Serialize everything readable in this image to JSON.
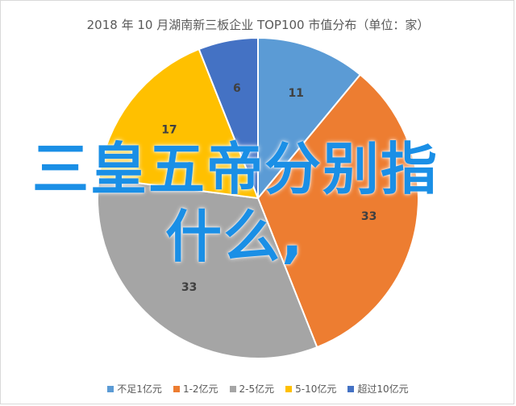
{
  "chart_data": {
    "type": "pie",
    "title": "2018 年 10 月湖南新三板企业 TOP100 市值分布（单位：家）",
    "categories": [
      "不足1亿元",
      "1-2亿元",
      "2-5亿元",
      "5-10亿元",
      "超过10亿元"
    ],
    "values": [
      11,
      33,
      33,
      17,
      6
    ],
    "colors": [
      "#5b9bd5",
      "#ed7d31",
      "#a5a5a5",
      "#ffc000",
      "#4472c4"
    ],
    "legend_position": "bottom"
  },
  "overlay": {
    "line1": "三皇五帝分别指",
    "line2": "什么,"
  }
}
